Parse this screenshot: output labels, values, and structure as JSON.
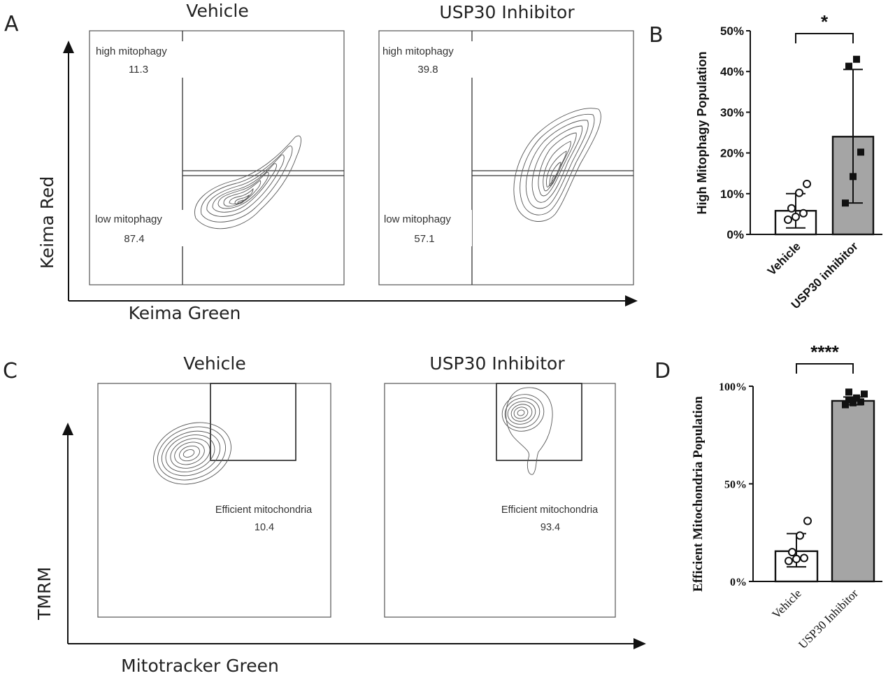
{
  "panels": {
    "A": {
      "label": "A",
      "y_axis_label": "Keima Red",
      "x_axis_label": "Keima Green",
      "plots": [
        {
          "title": "Vehicle",
          "upper_gate": "high mitophagy",
          "upper_value": "11.3",
          "lower_gate": "low mitophagy",
          "lower_value": "87.4"
        },
        {
          "title": "USP30 Inhibitor",
          "upper_gate": "high mitophagy",
          "upper_value": "39.8",
          "lower_gate": "low mitophagy",
          "lower_value": "57.1"
        }
      ]
    },
    "C": {
      "label": "C",
      "y_axis_label": "TMRM",
      "x_axis_label": "Mitotracker Green",
      "plots": [
        {
          "title": "Vehicle",
          "gate": "Efficient mitochondria",
          "value": "10.4"
        },
        {
          "title": "USP30 Inhibitor",
          "gate": "Efficient mitochondria",
          "value": "93.4"
        }
      ]
    },
    "B": {
      "label": "B"
    },
    "D": {
      "label": "D"
    }
  },
  "chart_data": [
    {
      "panel": "B",
      "type": "bar",
      "ylabel": "High Mitophagy Population",
      "ylim": [
        0,
        50
      ],
      "yticks": [
        "0%",
        "10%",
        "20%",
        "30%",
        "40%",
        "50%"
      ],
      "categories": [
        "Vehicle",
        "USP30 inhibitor"
      ],
      "values": [
        5.8,
        24
      ],
      "error_upper": [
        10,
        40.5
      ],
      "error_lower": [
        1.6,
        7.7
      ],
      "points": [
        [
          3.6,
          4.3,
          5.2,
          6.4,
          10.2,
          12.4
        ],
        [
          7.7,
          14.2,
          20.2,
          41.3,
          43
        ]
      ],
      "bar_colors": [
        "#ffffff",
        "#a5a5a5"
      ],
      "significance": "*"
    },
    {
      "panel": "D",
      "type": "bar",
      "ylabel": "Efficient Mitochondria Population",
      "ylim": [
        0,
        100
      ],
      "yticks": [
        "0%",
        "50%",
        "100%"
      ],
      "categories": [
        "Vehicle",
        "USP30 Inhibitor"
      ],
      "values": [
        15.5,
        92.5
      ],
      "error_upper": [
        24.5,
        94.5
      ],
      "error_lower": [
        7.5,
        90.5
      ],
      "points": [
        [
          10.5,
          11.5,
          12,
          15,
          23.5,
          31
        ],
        [
          90.5,
          91.5,
          92,
          93,
          94,
          96,
          97
        ]
      ],
      "bar_colors": [
        "#ffffff",
        "#a5a5a5"
      ],
      "significance": "****"
    }
  ]
}
